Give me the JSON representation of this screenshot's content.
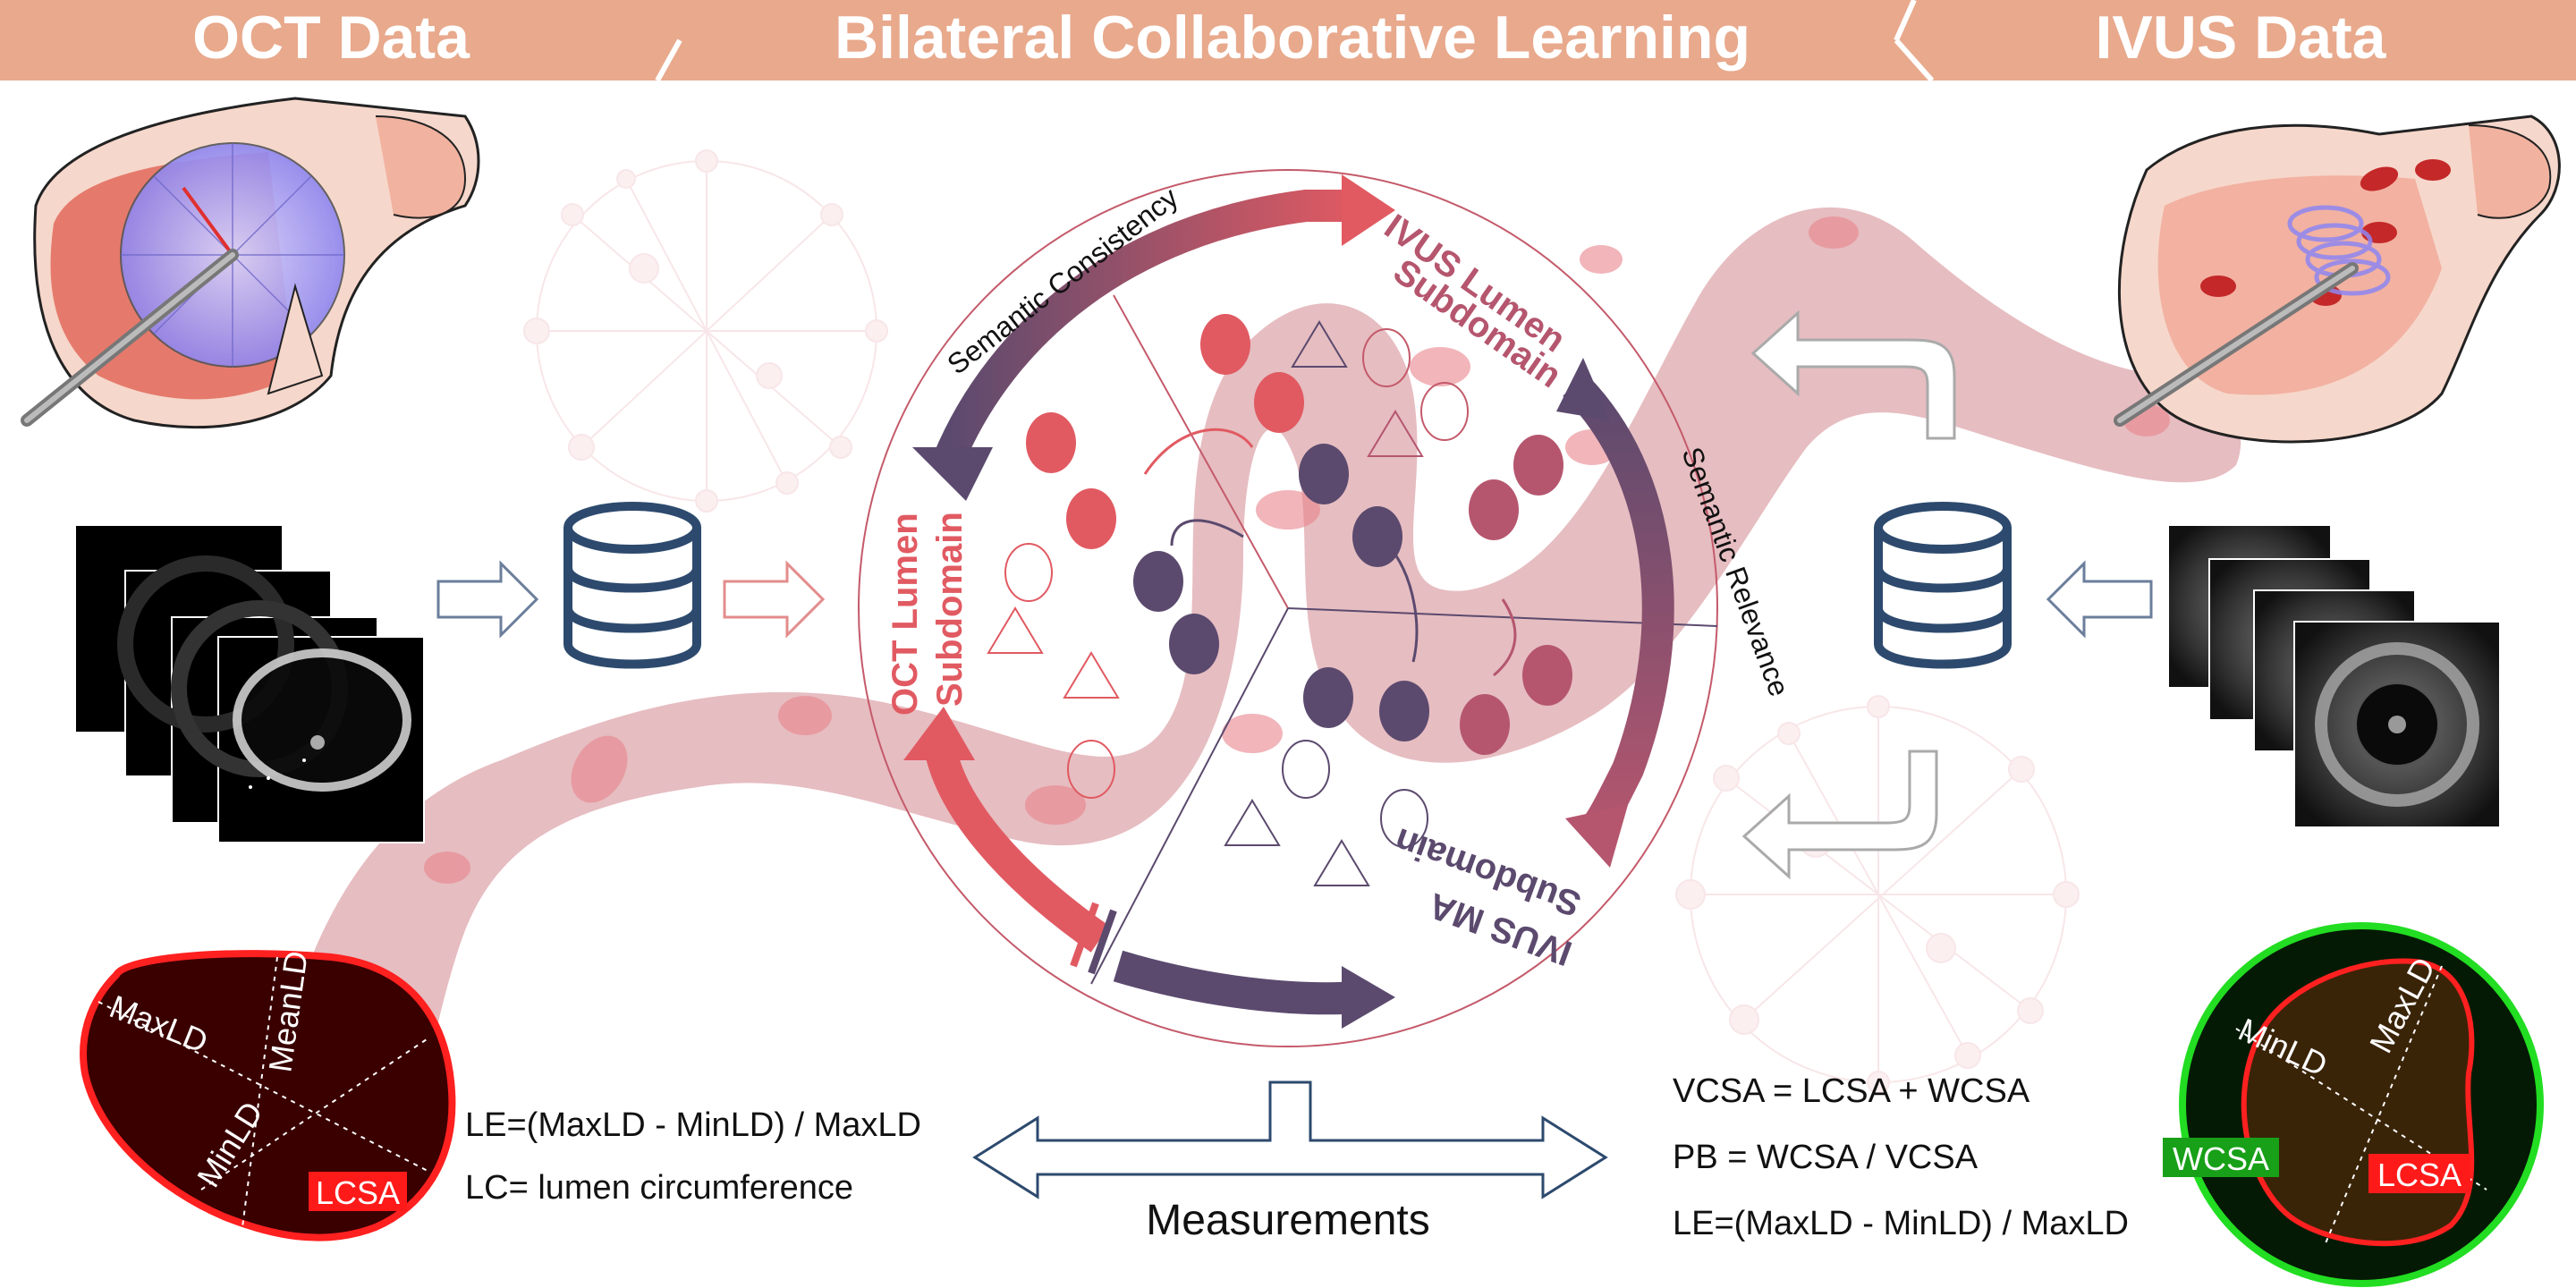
{
  "banner": {
    "left": "OCT Data",
    "center": "Bilateral Collaborative Learning",
    "right": "IVUS Data",
    "color": "#e8a98c"
  },
  "ring": {
    "semantic_consistency": "Semantic Consistency",
    "semantic_relevance": "Semantic Relevance",
    "ivus_lumen_line1": "IVUS Lumen",
    "ivus_lumen_line2": "Subdomain",
    "oct_lumen_line1": "OCT Lumen",
    "oct_lumen_line2": "Subdomain",
    "ivus_ma_line1": "IVUS MA",
    "ivus_ma_line2": "Subdomain",
    "colors": {
      "red": "#e15a62",
      "purple": "#5b4a6e",
      "mauve": "#b5566e"
    }
  },
  "oct_measure": {
    "max_ld": "MaxLD",
    "mean_ld": "MeanLD",
    "min_ld": "MinLD",
    "lcsa": "LCSA",
    "formula_le": "LE=(MaxLD - MinLD) / MaxLD",
    "formula_lc": "LC= lumen circumference"
  },
  "ivus_measure": {
    "min_ld": "MinLD",
    "max_ld": "MaxLD",
    "wcsa": "WCSA",
    "lcsa": "LCSA",
    "formula_vcsa": "VCSA = LCSA + WCSA",
    "formula_pb": "PB = WCSA / VCSA",
    "formula_le": "LE=(MaxLD - MinLD) / MaxLD"
  },
  "measurements_label": "Measurements"
}
